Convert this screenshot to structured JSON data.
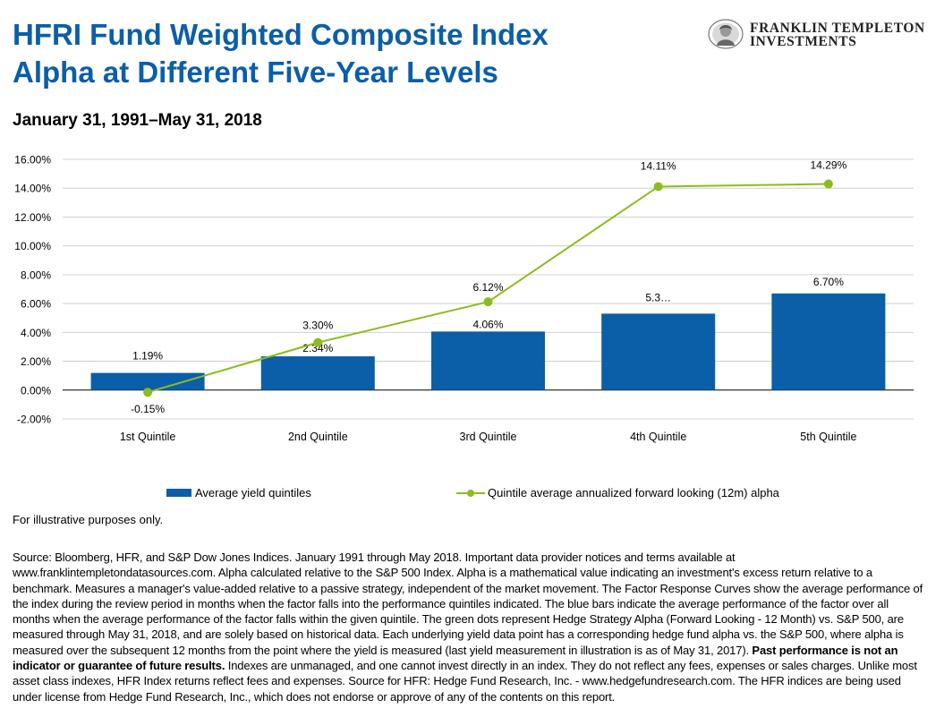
{
  "title_line1": "HFRI Fund Weighted Composite Index",
  "title_line2": "Alpha at Different Five-Year Levels",
  "subtitle": "January 31, 1991–May 31, 2018",
  "logo": {
    "line1": "FRANKLIN TEMPLETON",
    "line2": "INVESTMENTS"
  },
  "colors": {
    "title": "#0b5ea8",
    "bar": "#0b5ea8",
    "line": "#8cbc1e"
  },
  "chart_data": {
    "type": "bar",
    "categories": [
      "1st Quintile",
      "2nd Quintile",
      "3rd Quintile",
      "4th Quintile",
      "5th Quintile"
    ],
    "series": [
      {
        "name": "Average yield quintiles",
        "type": "bar",
        "values": [
          1.19,
          2.34,
          4.06,
          5.3,
          6.7
        ],
        "labels": [
          "1.19%",
          "2.34%",
          "4.06%",
          "5.3…",
          "6.70%"
        ]
      },
      {
        "name": "Quintile average annualized forward looking (12m) alpha",
        "type": "line",
        "values": [
          -0.15,
          3.3,
          6.12,
          14.11,
          14.29
        ],
        "labels": [
          "-0.15%",
          "3.30%",
          "6.12%",
          "14.11%",
          "14.29%"
        ]
      }
    ],
    "y_ticks": [
      "-2.00%",
      "0.00%",
      "2.00%",
      "4.00%",
      "6.00%",
      "8.00%",
      "10.00%",
      "12.00%",
      "14.00%",
      "16.00%"
    ],
    "ylim": [
      -2,
      16
    ],
    "grid": true,
    "legend_position": "bottom"
  },
  "legend": {
    "bar_label": "Average yield quintiles",
    "line_label": "Quintile average annualized forward looking (12m) alpha"
  },
  "note": "For illustrative purposes only.",
  "source": {
    "text1": "Source: Bloomberg, HFR, and S&P Dow Jones Indices. January 1991 through May 2018. Important data provider notices and terms available at www.franklintempletondatasources.com. Alpha calculated relative to the S&P 500 Index. Alpha is a mathematical value indicating an investment's excess return relative to a benchmark. Measures a manager's value-added relative to a passive strategy, independent of the market movement. The Factor Response Curves show the average performance of the index during the review period in months when the factor falls into the performance quintiles indicated. The blue bars indicate the average performance of the factor over all months when the average performance of the factor falls within the given quintile. The green dots represent Hedge Strategy Alpha (Forward Looking  - 12 Month) vs. S&P 500, are measured through May 31, 2018, and are solely based on historical data. Each underlying yield data point has a corresponding hedge fund alpha vs. the S&P 500, where alpha is measured over the subsequent 12 months from the point where the yield is measured (last yield measurement in illustration is as of May 31, 2017). ",
    "bold": "Past performance is not an indicator or guarantee of future results.",
    "text2": " Indexes are unmanaged, and one cannot invest directly in an index. They do not reflect any fees, expenses or sales charges. Unlike most asset class indexes, HFR Index returns reflect fees and expenses. Source for HFR: Hedge Fund Research, Inc. - www.hedgefundresearch.com. The HFR indices are being used under license from Hedge Fund Research, Inc., which does not endorse or approve of any of the contents on this report."
  }
}
